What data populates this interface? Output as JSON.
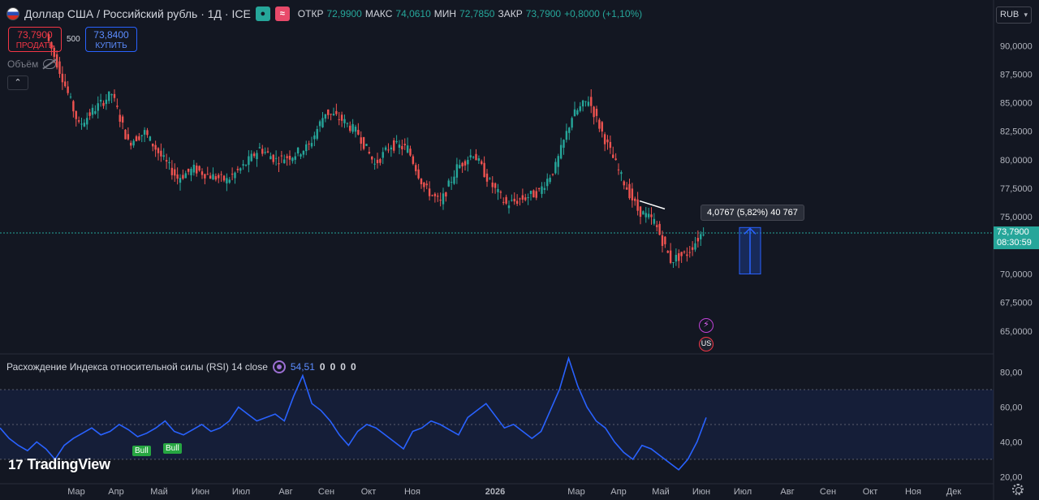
{
  "header": {
    "title": "Доллар США / Российский рубль · 1Д · ICE",
    "ohlc": [
      {
        "label": "ОТКР",
        "value": "72,9900"
      },
      {
        "label": "МАКС",
        "value": "74,0610"
      },
      {
        "label": "МИН",
        "value": "72,7850"
      },
      {
        "label": "ЗАКР",
        "value": "73,7900"
      },
      {
        "label": "",
        "value": "+0,8000 (+1,10%)"
      }
    ]
  },
  "trade": {
    "sell_price": "73,7900",
    "sell_label": "ПРОДАТЬ",
    "buy_price": "73,8400",
    "buy_label": "КУПИТЬ",
    "quantity": "500"
  },
  "volume_label": "Объём",
  "collapse_glyph": "⌃",
  "currency": "RUB",
  "last_price": "73,7900",
  "countdown": "08:30:59",
  "measure_text": "4,0767 (5,82%) 40 767",
  "event_glyphs": {
    "flash": "⚡",
    "flag": "US"
  },
  "rsi": {
    "title": "Расхождение Индекса относительной силы (RSI) 14 close",
    "value": "54,51",
    "zeros": [
      "0",
      "0",
      "0",
      "0"
    ],
    "bull_label": "Bull"
  },
  "watermark": {
    "logo": "17",
    "text": "TradingView"
  },
  "colors": {
    "up": "#26a69a",
    "down": "#ef5350",
    "rsi_line": "#2962ff",
    "measure": "#2962ff"
  },
  "icons": [
    "flag-icon",
    "eye-off-icon",
    "collapse-icon",
    "flash-icon",
    "us-flag-icon",
    "rsi-settings-icon",
    "tv-logo-icon",
    "gear-icon"
  ],
  "chart_data": {
    "type": "candlestick",
    "price_axis": {
      "ticks": [
        "90,0000",
        "87,5000",
        "85,0000",
        "82,5000",
        "80,0000",
        "77,5000",
        "75,0000",
        "70,0000",
        "67,5000",
        "65,0000"
      ],
      "range": [
        63.0,
        94.0
      ]
    },
    "time_axis": {
      "ticks": [
        "Мар",
        "Апр",
        "Май",
        "Июн",
        "Июл",
        "Авг",
        "Сен",
        "Окт",
        "Ноя",
        "2026",
        "Мар",
        "Апр",
        "Май",
        "Июн",
        "Июл",
        "Авг",
        "Сен",
        "Окт",
        "Ноя",
        "Дек"
      ]
    },
    "close_series": [
      {
        "t": "Фев",
        "close": 91.0
      },
      {
        "t": "Мар",
        "close": 87.2
      },
      {
        "t": "Мар",
        "close": 83.0
      },
      {
        "t": "Апр",
        "close": 84.5
      },
      {
        "t": "Апр",
        "close": 85.8
      },
      {
        "t": "Апр",
        "close": 81.5
      },
      {
        "t": "Май",
        "close": 82.4
      },
      {
        "t": "Май",
        "close": 80.3
      },
      {
        "t": "Июн",
        "close": 78.4
      },
      {
        "t": "Июн",
        "close": 79.2
      },
      {
        "t": "Июл",
        "close": 78.6
      },
      {
        "t": "Июл",
        "close": 78.2
      },
      {
        "t": "Июл",
        "close": 79.4
      },
      {
        "t": "Авг",
        "close": 81.0
      },
      {
        "t": "Авг",
        "close": 80.0
      },
      {
        "t": "Сен",
        "close": 80.4
      },
      {
        "t": "Сен",
        "close": 81.2
      },
      {
        "t": "Сен",
        "close": 84.2
      },
      {
        "t": "Окт",
        "close": 83.5
      },
      {
        "t": "Окт",
        "close": 82.3
      },
      {
        "t": "Окт",
        "close": 79.6
      },
      {
        "t": "Ноя",
        "close": 81.3
      },
      {
        "t": "Ноя",
        "close": 81.0
      },
      {
        "t": "Ноя",
        "close": 77.6
      },
      {
        "t": "Дек",
        "close": 76.2
      },
      {
        "t": "Дек",
        "close": 79.3
      },
      {
        "t": "2026",
        "close": 80.6
      },
      {
        "t": "Янв",
        "close": 78.0
      },
      {
        "t": "Янв",
        "close": 76.1
      },
      {
        "t": "Фев",
        "close": 76.6
      },
      {
        "t": "Фев",
        "close": 77.2
      },
      {
        "t": "Фев",
        "close": 79.4
      },
      {
        "t": "Мар",
        "close": 83.8
      },
      {
        "t": "Мар",
        "close": 85.3
      },
      {
        "t": "Мар",
        "close": 81.8
      },
      {
        "t": "Апр",
        "close": 78.5
      },
      {
        "t": "Апр",
        "close": 75.6
      },
      {
        "t": "Май",
        "close": 74.6
      },
      {
        "t": "Май",
        "close": 71.2
      },
      {
        "t": "Июн",
        "close": 71.8
      },
      {
        "t": "Июн",
        "close": 73.79
      }
    ],
    "trendline": {
      "from": {
        "t": "Апр 2026",
        "price": 76.4
      },
      "to": {
        "t": "Май 2026",
        "price": 75.7
      }
    },
    "measure": {
      "from": 70.0,
      "to": 74.07,
      "change": "4,0767 (5,82%) 40 767"
    },
    "rsi": {
      "period": 14,
      "source": "close",
      "current": 54.51,
      "levels": [
        70,
        50,
        30
      ],
      "ticks": [
        "80,00",
        "60,00",
        "40,00",
        "20,00"
      ],
      "range": [
        16,
        90
      ],
      "values": [
        48,
        42,
        38,
        35,
        40,
        36,
        30,
        38,
        42,
        45,
        48,
        44,
        46,
        50,
        47,
        43,
        45,
        48,
        52,
        46,
        44,
        47,
        50,
        46,
        48,
        52,
        60,
        56,
        52,
        54,
        56,
        52,
        66,
        78,
        62,
        58,
        52,
        44,
        38,
        46,
        50,
        48,
        44,
        40,
        36,
        46,
        48,
        52,
        50,
        47,
        44,
        54,
        58,
        62,
        55,
        48,
        50,
        46,
        42,
        46,
        58,
        70,
        88,
        72,
        60,
        52,
        48,
        40,
        34,
        30,
        38,
        36,
        32,
        28,
        24,
        30,
        40,
        54
      ]
    }
  }
}
